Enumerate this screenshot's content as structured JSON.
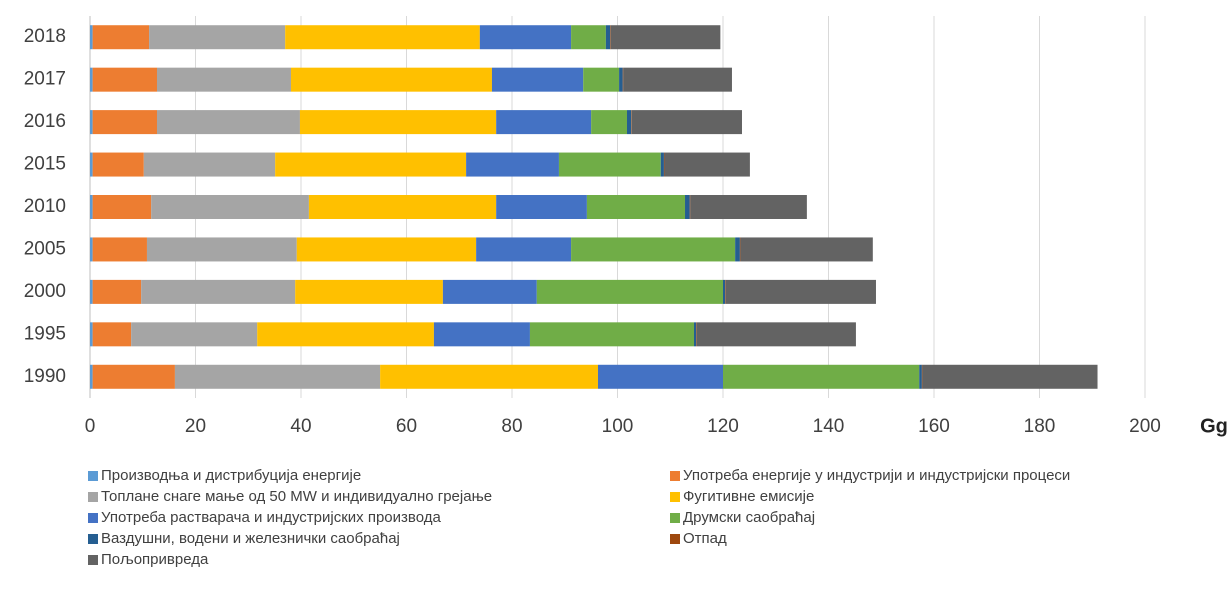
{
  "chart_data": {
    "type": "stacked_barh",
    "x_label": "Gg",
    "categories": [
      "1990",
      "1995",
      "2000",
      "2005",
      "2010",
      "2015",
      "2016",
      "2017",
      "2018"
    ],
    "series": [
      {
        "name": "Производња и дистрибуција енергије",
        "color": "#5b9bd5",
        "values": [
          0.5,
          0.5,
          0.5,
          0.5,
          0.5,
          0.5,
          0.5,
          0.5,
          0.5
        ]
      },
      {
        "name": "Употреба енергије у индустрији и индустријски процеси",
        "color": "#ed7d31",
        "values": [
          15.6,
          7.3,
          9.2,
          10.3,
          11.1,
          9.7,
          12.2,
          12.2,
          10.7
        ]
      },
      {
        "name": "Топлане снаге мање од 50 MW и индивидуално грејање",
        "color": "#a5a5a5",
        "values": [
          38.9,
          23.9,
          29.2,
          28.4,
          29.9,
          24.9,
          27.1,
          25.4,
          25.8
        ]
      },
      {
        "name": "Фугитивне емисије",
        "color": "#ffc000",
        "values": [
          41.3,
          33.5,
          28.0,
          34.0,
          35.5,
          36.2,
          37.2,
          38.1,
          36.9
        ]
      },
      {
        "name": "Употреба растварача и индустријских производа",
        "color": "#4472c4",
        "values": [
          23.7,
          18.2,
          17.8,
          18.0,
          17.2,
          17.6,
          18.0,
          17.3,
          17.3
        ]
      },
      {
        "name": "Друмски саобраћај",
        "color": "#70ad47",
        "values": [
          37.2,
          31.1,
          35.3,
          31.1,
          18.6,
          19.3,
          6.8,
          6.8,
          6.6
        ]
      },
      {
        "name": "Ваздушни, водени и железнички саобраћај",
        "color": "#255e91",
        "values": [
          0.5,
          0.4,
          0.4,
          0.9,
          0.9,
          0.6,
          0.8,
          0.7,
          0.8
        ]
      },
      {
        "name": "Отпад",
        "color": "#9e480e",
        "values": [
          0.1,
          0.1,
          0.1,
          0.1,
          0.1,
          0.1,
          0.1,
          0.1,
          0.1
        ]
      },
      {
        "name": "Пољопривреда",
        "color": "#636363",
        "values": [
          33.2,
          30.2,
          28.5,
          25.1,
          22.1,
          16.2,
          20.9,
          20.6,
          20.8
        ]
      }
    ],
    "xlim": [
      0,
      200
    ],
    "xticks": [
      0,
      20,
      40,
      60,
      80,
      100,
      120,
      140,
      160,
      180,
      200
    ],
    "grid": true,
    "legend": "bottom"
  }
}
